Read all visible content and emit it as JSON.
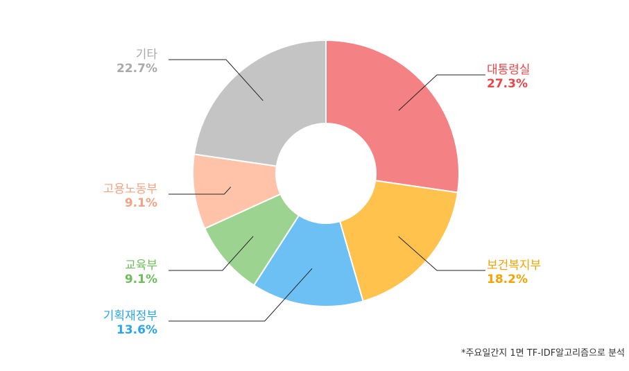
{
  "chart_data": {
    "type": "pie",
    "variant": "donut",
    "slices": [
      {
        "label": "대통령실",
        "value": 27.3,
        "value_label": "27.3%",
        "color": "#F48184",
        "label_color": "#E8474A"
      },
      {
        "label": "보건복지부",
        "value": 18.2,
        "value_label": "18.2%",
        "color": "#FFC34D",
        "label_color": "#F5A300"
      },
      {
        "label": "기획재정부",
        "value": 13.6,
        "value_label": "13.6%",
        "color": "#6CC0F3",
        "label_color": "#2AA5E8"
      },
      {
        "label": "교육부",
        "value": 9.1,
        "value_label": "9.1%",
        "color": "#9DD390",
        "label_color": "#6BBE5A"
      },
      {
        "label": "고용노동부",
        "value": 9.1,
        "value_label": "9.1%",
        "color": "#FFC3AA",
        "label_color": "#F4A283"
      },
      {
        "label": "기타",
        "value": 22.7,
        "value_label": "22.7%",
        "color": "#C4C4C4",
        "label_color": "#A9A9A9"
      }
    ],
    "start_angle": "12 o'clock",
    "direction": "clockwise",
    "legend": "none",
    "footnote": "*주요일간지 1면 TF-IDF알고리즘으로 분석"
  }
}
